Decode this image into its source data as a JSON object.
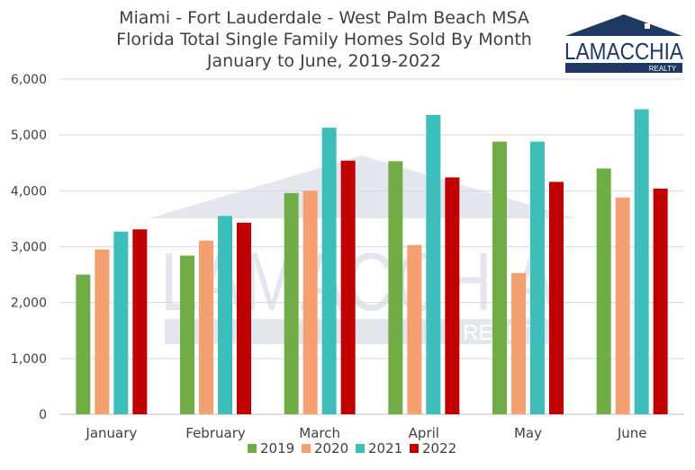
{
  "logo": {
    "name": "LAMACCHIA",
    "sub": "REALTY"
  },
  "watermark": {
    "name": "LAMACCHIA",
    "sub": "REALTY"
  },
  "colors": {
    "2019": "#70AD47",
    "2020": "#F4A071",
    "2021": "#3DBEBB",
    "2022": "#C00000",
    "logo_navy": "#1F3864"
  },
  "chart_data": {
    "type": "bar",
    "title": [
      "Miami - Fort Lauderdale - West Palm Beach MSA",
      "Florida Total Single Family Homes Sold By Month",
      "January to June, 2019-2022"
    ],
    "categories": [
      "January",
      "February",
      "March",
      "April",
      "May",
      "June"
    ],
    "series": [
      {
        "name": "2019",
        "color": "#70AD47",
        "values": [
          2500,
          2840,
          3960,
          4530,
          4880,
          4400
        ]
      },
      {
        "name": "2020",
        "color": "#F4A071",
        "values": [
          2950,
          3110,
          4000,
          3030,
          2530,
          3880
        ]
      },
      {
        "name": "2021",
        "color": "#3DBEBB",
        "values": [
          3270,
          3550,
          5130,
          5360,
          4880,
          5460
        ]
      },
      {
        "name": "2022",
        "color": "#C00000",
        "values": [
          3310,
          3430,
          4540,
          4240,
          4160,
          4040
        ]
      }
    ],
    "yticks": [
      "0",
      "1,000",
      "2,000",
      "3,000",
      "4,000",
      "5,000",
      "6,000"
    ],
    "ylim": [
      0,
      6000
    ],
    "grid": true,
    "legend": "bottom"
  }
}
